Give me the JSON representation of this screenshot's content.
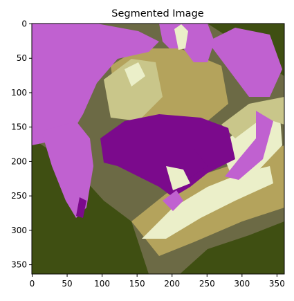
{
  "figure": {
    "title": "Segmented Image",
    "background": "#ffffff"
  },
  "image": {
    "description_tag": "segmented-orchid-flower",
    "palette": {
      "dark_olive": "#3f4f12",
      "olive_gray": "#6c6a45",
      "khaki": "#b4a35c",
      "pale_khaki": "#c9c68a",
      "cream": "#ebefc9",
      "orchid": "#c061d0",
      "purple": "#7b0a8c"
    }
  },
  "axes": {
    "xlim": [
      -0.5,
      360.5
    ],
    "ylim": [
      363.5,
      -0.5
    ],
    "x_ticks": [
      0,
      50,
      100,
      150,
      200,
      250,
      300,
      350
    ],
    "y_ticks": [
      0,
      50,
      100,
      150,
      200,
      250,
      300,
      350
    ],
    "x_tick_labels": [
      "0",
      "50",
      "100",
      "150",
      "200",
      "250",
      "300",
      "350"
    ],
    "y_tick_labels": [
      "0",
      "50",
      "100",
      "150",
      "200",
      "250",
      "300",
      "350"
    ]
  }
}
